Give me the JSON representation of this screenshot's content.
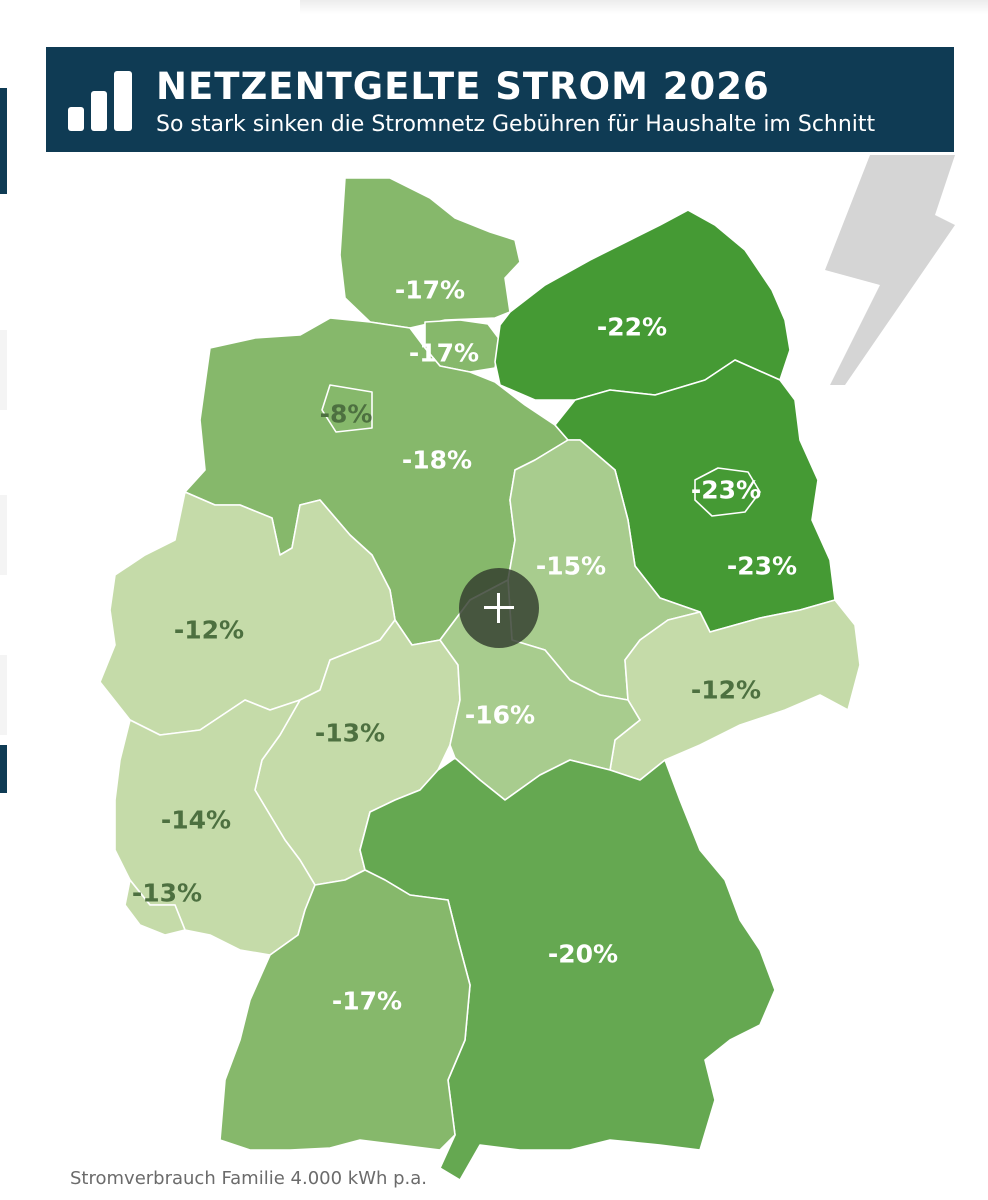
{
  "header": {
    "title": "NETZENTGELTE STROM 2026",
    "subtitle": "So stark sinken die Stromnetz Gebühren für Haushalte im Schnitt",
    "icon": "bar-chart-icon"
  },
  "map": {
    "regions": [
      {
        "value": "-17%",
        "unit_percent": -17,
        "color": "#86b86b",
        "text_style": "light"
      },
      {
        "value": "-17%",
        "unit_percent": -17,
        "color": "#86b86b",
        "text_style": "light"
      },
      {
        "value": "-22%",
        "unit_percent": -22,
        "color": "#459a34",
        "text_style": "light"
      },
      {
        "value": "-8%",
        "unit_percent": -8,
        "color": "#86b86b",
        "text_style": "dark"
      },
      {
        "value": "-18%",
        "unit_percent": -18,
        "color": "#86b86b",
        "text_style": "light"
      },
      {
        "value": "-23%",
        "unit_percent": -23,
        "color": "#459a34",
        "text_style": "light"
      },
      {
        "value": "-23%",
        "unit_percent": -23,
        "color": "#459a34",
        "text_style": "light"
      },
      {
        "value": "-15%",
        "unit_percent": -15,
        "color": "#a8cc8e",
        "text_style": "light"
      },
      {
        "value": "-12%",
        "unit_percent": -12,
        "color": "#c5dba9",
        "text_style": "dark"
      },
      {
        "value": "-12%",
        "unit_percent": -12,
        "color": "#c5dba9",
        "text_style": "dark"
      },
      {
        "value": "-13%",
        "unit_percent": -13,
        "color": "#c5dba9",
        "text_style": "dark"
      },
      {
        "value": "-16%",
        "unit_percent": -16,
        "color": "#a8cc8e",
        "text_style": "light"
      },
      {
        "value": "-14%",
        "unit_percent": -14,
        "color": "#c5dba9",
        "text_style": "dark"
      },
      {
        "value": "-13%",
        "unit_percent": -13,
        "color": "#c5dba9",
        "text_style": "dark"
      },
      {
        "value": "-20%",
        "unit_percent": -20,
        "color": "#65a851",
        "text_style": "light"
      },
      {
        "value": "-17%",
        "unit_percent": -17,
        "color": "#86b86b",
        "text_style": "light"
      }
    ],
    "decoration": "lightning-bolt-icon",
    "zoom_control": "plus-icon"
  },
  "footnote": "Stromverbrauch Familie 4.000 kWh p.a."
}
